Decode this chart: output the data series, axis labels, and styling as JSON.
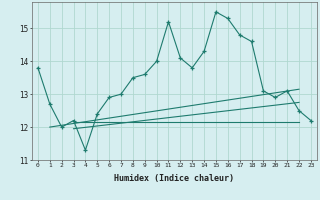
{
  "title": "",
  "xlabel": "Humidex (Indice chaleur)",
  "ylabel": "",
  "bg_color": "#d6eef0",
  "line_color": "#1e7b6e",
  "grid_color": "#b0d8d0",
  "x_values": [
    0,
    1,
    2,
    3,
    4,
    5,
    6,
    7,
    8,
    9,
    10,
    11,
    12,
    13,
    14,
    15,
    16,
    17,
    18,
    19,
    20,
    21,
    22,
    23
  ],
  "y_main": [
    13.8,
    12.7,
    12.0,
    12.2,
    11.3,
    12.4,
    12.9,
    13.0,
    13.5,
    13.6,
    14.0,
    15.2,
    14.1,
    13.8,
    14.3,
    15.5,
    15.3,
    14.8,
    14.6,
    13.1,
    12.9,
    13.1,
    12.5,
    12.2
  ],
  "ylim": [
    11.0,
    15.8
  ],
  "xlim": [
    -0.5,
    23.5
  ],
  "yticks": [
    11,
    12,
    13,
    14,
    15
  ],
  "xticks": [
    0,
    1,
    2,
    3,
    4,
    5,
    6,
    7,
    8,
    9,
    10,
    11,
    12,
    13,
    14,
    15,
    16,
    17,
    18,
    19,
    20,
    21,
    22,
    23
  ],
  "trend1_x": [
    3.0,
    22.0
  ],
  "trend1_y": [
    12.15,
    12.15
  ],
  "trend2_x": [
    3.0,
    22.0
  ],
  "trend2_y": [
    11.95,
    12.75
  ],
  "trend3_x": [
    1.0,
    22.0
  ],
  "trend3_y": [
    12.0,
    13.15
  ]
}
